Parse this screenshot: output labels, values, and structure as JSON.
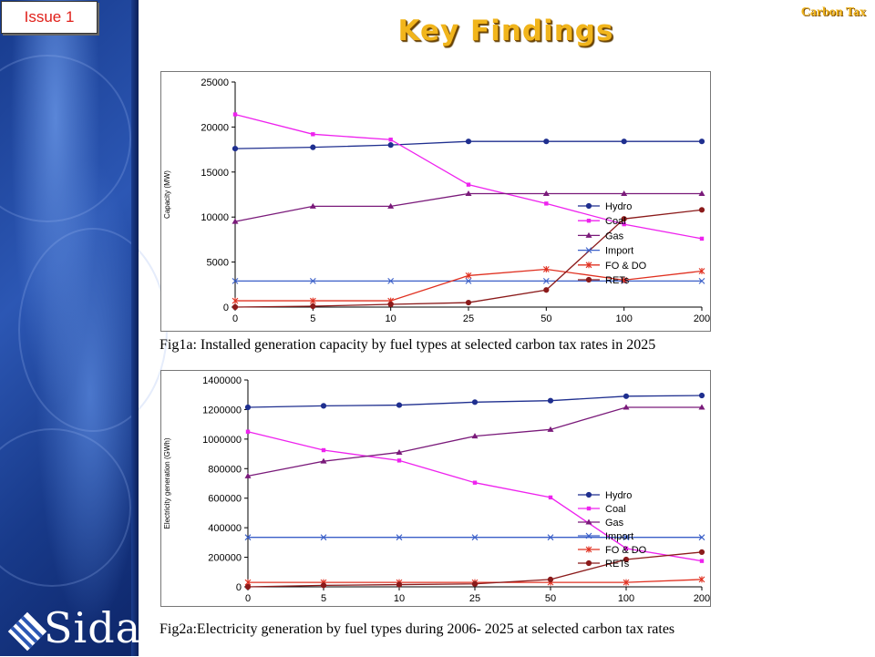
{
  "header": {
    "issue_label": "Issue 1",
    "title": "Key Findings",
    "topic": "Carbon Tax"
  },
  "logo": {
    "text": "Sida"
  },
  "colors": {
    "Hydro": "#1f2f8f",
    "Coal": "#ee22ee",
    "Gas": "#7a1a7a",
    "Import": "#3a5fc8",
    "FO & DO": "#e03020",
    "RETs": "#8b1a1a"
  },
  "chart_data": [
    {
      "type": "line",
      "caption": "Fig1a: Installed generation capacity by fuel types at selected carbon tax rates in  2025",
      "ylabel": "Capacity (MW)",
      "xlabel": "",
      "categories": [
        "0",
        "5",
        "10",
        "25",
        "50",
        "100",
        "200"
      ],
      "ylim": [
        0,
        25000
      ],
      "yticks": [
        "0",
        "5000",
        "10000",
        "15000",
        "20000",
        "25000"
      ],
      "legend_position": "right",
      "series": [
        {
          "name": "Hydro",
          "values": [
            17600,
            17750,
            18000,
            18400,
            18400,
            18400,
            18400
          ]
        },
        {
          "name": "Coal",
          "values": [
            21400,
            19200,
            18600,
            13600,
            11500,
            9200,
            7600
          ]
        },
        {
          "name": "Gas",
          "values": [
            9500,
            11200,
            11200,
            12600,
            12600,
            12600,
            12600
          ]
        },
        {
          "name": "Import",
          "values": [
            2900,
            2900,
            2900,
            2900,
            2900,
            2900,
            2900
          ]
        },
        {
          "name": "FO & DO",
          "values": [
            700,
            700,
            700,
            3500,
            4200,
            3000,
            4000
          ]
        },
        {
          "name": "RETs",
          "values": [
            0,
            100,
            300,
            500,
            1900,
            9800,
            10800
          ]
        }
      ]
    },
    {
      "type": "line",
      "caption": "Fig2a:Electricity generation by fuel types during 2006- 2025 at selected carbon tax  rates",
      "ylabel": "Electricity generation (GWh)",
      "xlabel": "",
      "categories": [
        "0",
        "5",
        "10",
        "25",
        "50",
        "100",
        "200"
      ],
      "ylim": [
        0,
        1400000
      ],
      "yticks": [
        "0",
        "200000",
        "400000",
        "600000",
        "800000",
        "1000000",
        "1200000",
        "1400000"
      ],
      "legend_position": "right",
      "series": [
        {
          "name": "Hydro",
          "values": [
            1215000,
            1225000,
            1230000,
            1250000,
            1260000,
            1290000,
            1295000
          ]
        },
        {
          "name": "Coal",
          "values": [
            1050000,
            925000,
            855000,
            705000,
            605000,
            260000,
            175000
          ]
        },
        {
          "name": "Gas",
          "values": [
            750000,
            850000,
            910000,
            1020000,
            1065000,
            1215000,
            1215000
          ]
        },
        {
          "name": "Import",
          "values": [
            335000,
            335000,
            335000,
            335000,
            335000,
            335000,
            335000
          ]
        },
        {
          "name": "FO & DO",
          "values": [
            30000,
            30000,
            30000,
            30000,
            30000,
            30000,
            50000
          ]
        },
        {
          "name": "RETs",
          "values": [
            0,
            10000,
            15000,
            20000,
            50000,
            185000,
            235000
          ]
        }
      ]
    }
  ]
}
